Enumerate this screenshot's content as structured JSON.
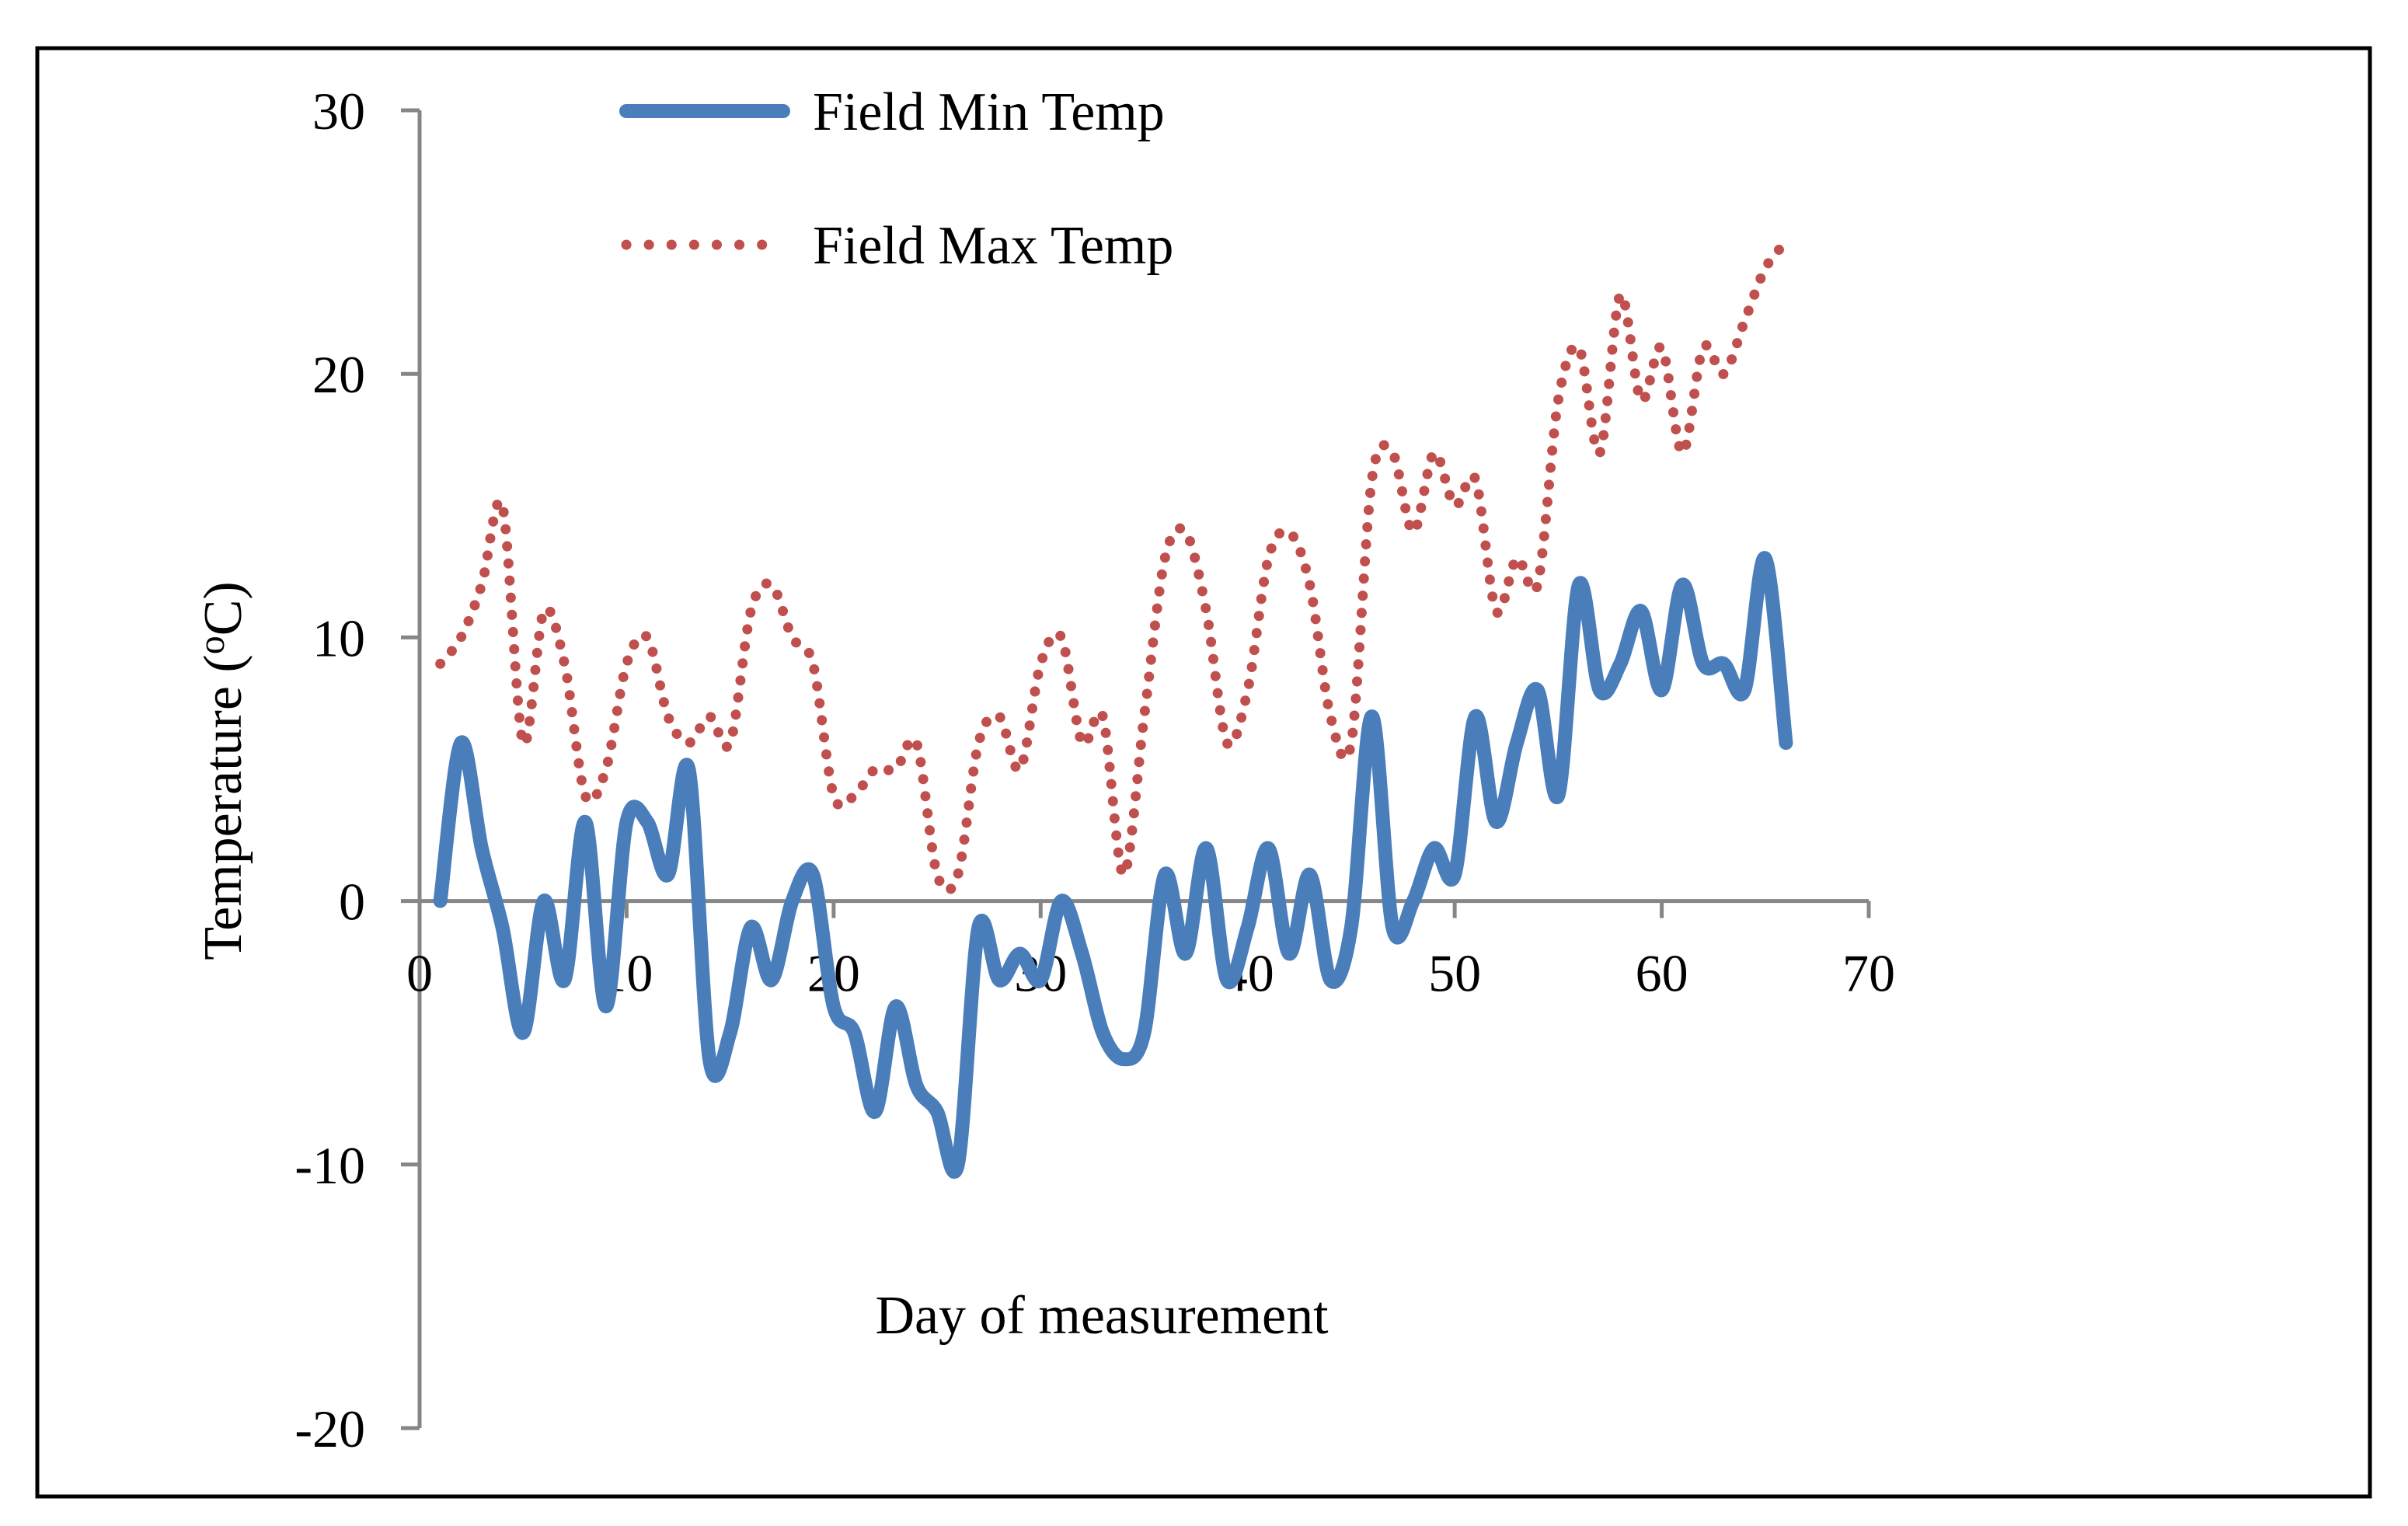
{
  "chart_data": {
    "type": "line",
    "title": "",
    "xlabel": "Day of measurement",
    "ylabel": "Temperature (oC)",
    "ylabel_main": "Temperature (",
    "ylabel_sup": "o",
    "ylabel_tail": "C)",
    "xlim": [
      0,
      70
    ],
    "ylim": [
      -20,
      30
    ],
    "xticks": [
      0,
      10,
      20,
      30,
      40,
      50,
      60,
      70
    ],
    "yticks": [
      -20,
      -10,
      0,
      10,
      20,
      30
    ],
    "xtick_labels": [
      "0",
      "10",
      "20",
      "30",
      "40",
      "50",
      "60",
      "70"
    ],
    "ytick_labels": [
      "-20",
      "-10",
      "0",
      "10",
      "20",
      "30"
    ],
    "grid": false,
    "legend_position": "top",
    "series": [
      {
        "name": "Field Min Temp",
        "style": "solid",
        "color": "#4A7EBB",
        "x": [
          1,
          2,
          3,
          4,
          5,
          6,
          7,
          8,
          9,
          10,
          11,
          12,
          13,
          14,
          15,
          16,
          17,
          18,
          19,
          20,
          21,
          22,
          23,
          24,
          25,
          26,
          27,
          28,
          29,
          30,
          31,
          32,
          33,
          34,
          35,
          36,
          37,
          38,
          39,
          40,
          41,
          42,
          43,
          44,
          45,
          46,
          47,
          48,
          49,
          50,
          51,
          52,
          53,
          54,
          55,
          56,
          57,
          58,
          59,
          60,
          61,
          62,
          63,
          64,
          65,
          66
        ],
        "values": [
          0,
          6,
          2,
          -1,
          -5,
          0,
          -3,
          3,
          -4,
          3,
          3,
          1,
          5,
          -6,
          -5,
          -1,
          -3,
          0,
          1,
          -4,
          -5,
          -8,
          -4,
          -7,
          -8,
          -10,
          -1,
          -3,
          -2,
          -3,
          0,
          -2,
          -5,
          -6,
          -5,
          1,
          -2,
          2,
          -3,
          -1,
          2,
          -2,
          1,
          -3,
          -1,
          7,
          -1,
          0,
          2,
          1,
          7,
          3,
          6,
          8,
          4,
          12,
          8,
          9,
          11,
          8,
          12,
          9,
          9,
          8,
          13,
          6
        ]
      },
      {
        "name": "Field Max Temp",
        "style": "dotted",
        "color": "#C0504D",
        "x": [
          1,
          2,
          3,
          4,
          5,
          6,
          7,
          8,
          9,
          10,
          11,
          12,
          13,
          14,
          15,
          16,
          17,
          18,
          19,
          20,
          21,
          22,
          23,
          24,
          25,
          26,
          27,
          28,
          29,
          30,
          31,
          32,
          33,
          34,
          35,
          36,
          37,
          38,
          39,
          40,
          41,
          42,
          43,
          44,
          45,
          46,
          47,
          48,
          49,
          50,
          51,
          52,
          53,
          54,
          55,
          56,
          57,
          58,
          59,
          60,
          61,
          62,
          63,
          64,
          65,
          66
        ],
        "values": [
          9,
          10,
          12,
          15,
          6,
          11,
          9,
          4,
          5,
          9,
          10,
          7,
          6,
          7,
          6,
          11,
          12,
          10,
          9,
          4,
          4,
          5,
          5,
          6,
          1,
          1,
          6,
          7,
          5,
          9,
          10,
          6,
          7,
          1,
          7,
          13,
          14,
          11,
          6,
          8,
          13,
          14,
          12,
          7,
          6,
          16,
          17,
          14,
          17,
          15,
          16,
          11,
          13,
          12,
          19,
          21,
          17,
          23,
          19,
          21,
          17,
          21,
          20,
          22,
          24,
          25
        ]
      }
    ]
  }
}
